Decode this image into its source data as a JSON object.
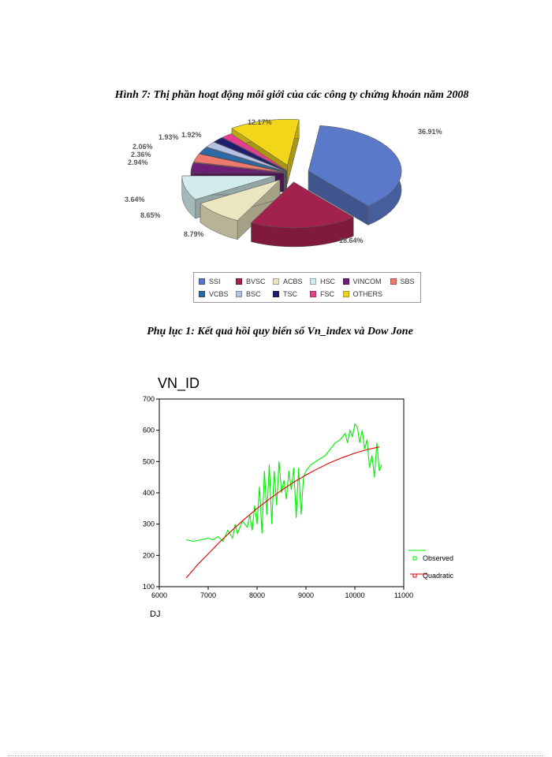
{
  "figure1": {
    "caption": "Hình  7: Thị phần hoạt động môi giới của các công ty chứng khoán năm 2008"
  },
  "figure2": {
    "caption": "Phụ lục 1: Kết quả hồi quy biến số Vn_index và Dow Jone"
  },
  "chart_data": [
    {
      "type": "pie",
      "title": "",
      "legend_position": "bottom",
      "categories": [
        "SSI",
        "BVSC",
        "ACBS",
        "HSC",
        "VINCOM",
        "SBS",
        "VCBS",
        "BSC",
        "TSC",
        "FSC",
        "OTHERS"
      ],
      "values": [
        36.91,
        18.64,
        8.79,
        8.65,
        3.64,
        2.94,
        2.36,
        2.06,
        1.93,
        1.92,
        12.17
      ],
      "value_labels": [
        "36.91%",
        "18.64%",
        "8.79%",
        "8.65%",
        "3.64%",
        "2.94%",
        "2.36%",
        "2.06%",
        "1.93%",
        "1.92%",
        "12.17%"
      ],
      "colors": [
        "#5b79c9",
        "#a3214d",
        "#ece6c0",
        "#d2ecec",
        "#6b1f75",
        "#ee7a6e",
        "#2b6aa9",
        "#b5c2e5",
        "#1c1f6e",
        "#e53f8d",
        "#f1d61a"
      ]
    },
    {
      "type": "line",
      "title": "VN_ID",
      "xlabel": "DJ",
      "ylabel": "",
      "xlim": [
        6000,
        11000
      ],
      "ylim": [
        100,
        700
      ],
      "x_ticks": [
        6000,
        7000,
        8000,
        9000,
        10000,
        11000
      ],
      "y_ticks": [
        100,
        200,
        300,
        400,
        500,
        600,
        700
      ],
      "grid": false,
      "legend_position": "bottom-right",
      "series": [
        {
          "name": "Observed",
          "color": "#00ee00",
          "x": [
            6550,
            6700,
            6850,
            7000,
            7100,
            7200,
            7300,
            7400,
            7500,
            7550,
            7600,
            7700,
            7800,
            7850,
            7900,
            7950,
            8000,
            8050,
            8100,
            8150,
            8200,
            8250,
            8300,
            8350,
            8400,
            8450,
            8500,
            8550,
            8600,
            8650,
            8700,
            8750,
            8800,
            8850,
            8900,
            8950,
            9000,
            9100,
            9200,
            9300,
            9400,
            9500,
            9600,
            9700,
            9800,
            9850,
            9900,
            9950,
            10000,
            10050,
            10100,
            10150,
            10200,
            10250,
            10300,
            10350,
            10400,
            10450,
            10500,
            10550
          ],
          "y": [
            250,
            245,
            250,
            255,
            250,
            260,
            245,
            280,
            255,
            300,
            270,
            310,
            290,
            330,
            280,
            360,
            300,
            420,
            270,
            470,
            330,
            490,
            300,
            470,
            360,
            500,
            400,
            440,
            380,
            470,
            410,
            480,
            320,
            480,
            330,
            450,
            470,
            490,
            500,
            510,
            520,
            540,
            560,
            570,
            590,
            560,
            600,
            580,
            620,
            610,
            560,
            600,
            540,
            570,
            480,
            520,
            450,
            560,
            470,
            490
          ]
        },
        {
          "name": "Quadratic",
          "color": "#e00000",
          "x": [
            6550,
            6800,
            7000,
            7250,
            7500,
            7750,
            8000,
            8250,
            8500,
            8750,
            9000,
            9250,
            9500,
            9750,
            10000,
            10250,
            10500
          ],
          "y": [
            128,
            173,
            205,
            245,
            282,
            317,
            350,
            380,
            408,
            434,
            457,
            478,
            497,
            513,
            527,
            538,
            547
          ]
        }
      ]
    }
  ]
}
